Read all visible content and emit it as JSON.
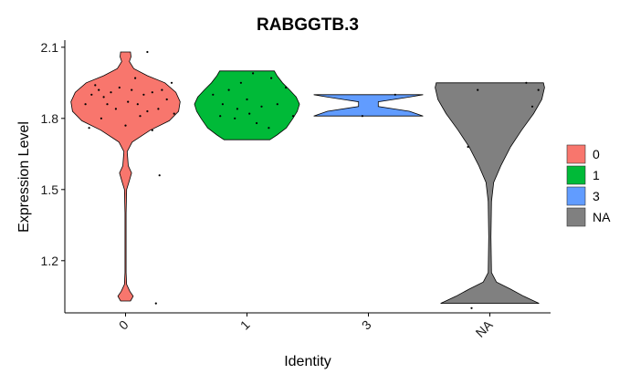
{
  "chart_data": {
    "type": "violin",
    "title": "RABGGTB.3",
    "xlabel": "Identity",
    "ylabel": "Expression Level",
    "categories": [
      "0",
      "1",
      "3",
      "NA"
    ],
    "y_ticks": [
      1.2,
      1.5,
      1.8,
      2.1
    ],
    "y_tick_labels": [
      "1.2",
      "1.5",
      "1.8",
      "2.1"
    ],
    "ylim": [
      0.98,
      2.13
    ],
    "grid": false,
    "legend": {
      "position": "right",
      "entries": [
        {
          "label": "0",
          "color": "#F8766D"
        },
        {
          "label": "1",
          "color": "#00BA38"
        },
        {
          "label": "3",
          "color": "#619CFF"
        },
        {
          "label": "NA",
          "color": "#808080"
        }
      ]
    },
    "series": [
      {
        "category": "0",
        "color": "#F8766D",
        "violin": [
          [
            1.03,
            0.09
          ],
          [
            1.05,
            0.14
          ],
          [
            1.07,
            0.08
          ],
          [
            1.1,
            0.02
          ],
          [
            1.15,
            0.01
          ],
          [
            1.3,
            0.01
          ],
          [
            1.4,
            0.01
          ],
          [
            1.5,
            0.02
          ],
          [
            1.53,
            0.06
          ],
          [
            1.57,
            0.11
          ],
          [
            1.6,
            0.05
          ],
          [
            1.66,
            0.03
          ],
          [
            1.7,
            0.12
          ],
          [
            1.75,
            0.45
          ],
          [
            1.79,
            0.8
          ],
          [
            1.83,
            0.97
          ],
          [
            1.87,
            1.0
          ],
          [
            1.91,
            0.92
          ],
          [
            1.95,
            0.72
          ],
          [
            1.98,
            0.4
          ],
          [
            2.01,
            0.15
          ],
          [
            2.04,
            0.07
          ],
          [
            2.06,
            0.1
          ],
          [
            2.08,
            0.09
          ]
        ],
        "points": [
          [
            -0.25,
            1.94
          ],
          [
            -0.22,
            1.92
          ],
          [
            -0.28,
            1.9
          ],
          [
            -0.18,
            1.89
          ],
          [
            -0.12,
            1.91
          ],
          [
            -0.05,
            1.93
          ],
          [
            0.05,
            1.92
          ],
          [
            0.15,
            1.9
          ],
          [
            0.22,
            1.91
          ],
          [
            0.3,
            1.92
          ],
          [
            0.38,
            1.95
          ],
          [
            -0.15,
            1.86
          ],
          [
            -0.08,
            1.84
          ],
          [
            0.02,
            1.87
          ],
          [
            0.1,
            1.86
          ],
          [
            0.18,
            1.83
          ],
          [
            0.27,
            1.84
          ],
          [
            0.34,
            1.88
          ],
          [
            0.4,
            1.82
          ],
          [
            -0.2,
            1.8
          ],
          [
            0.12,
            1.81
          ],
          [
            -0.33,
            1.86
          ],
          [
            -0.3,
            1.76
          ],
          [
            0.0,
            1.77
          ],
          [
            0.22,
            1.75
          ],
          [
            0.08,
            1.97
          ],
          [
            0.18,
            2.08
          ],
          [
            0.28,
            1.56
          ],
          [
            0.25,
            1.02
          ]
        ]
      },
      {
        "category": "1",
        "color": "#00BA38",
        "violin": [
          [
            1.71,
            0.42
          ],
          [
            1.73,
            0.55
          ],
          [
            1.76,
            0.72
          ],
          [
            1.8,
            0.84
          ],
          [
            1.83,
            0.92
          ],
          [
            1.86,
            0.96
          ],
          [
            1.89,
            0.9
          ],
          [
            1.92,
            0.78
          ],
          [
            1.95,
            0.65
          ],
          [
            1.98,
            0.55
          ],
          [
            2.0,
            0.5
          ]
        ],
        "points": [
          [
            -0.28,
            1.9
          ],
          [
            -0.15,
            1.92
          ],
          [
            -0.05,
            1.95
          ],
          [
            0.05,
            1.99
          ],
          [
            0.2,
            1.97
          ],
          [
            0.32,
            1.93
          ],
          [
            -0.2,
            1.86
          ],
          [
            -0.08,
            1.84
          ],
          [
            0.0,
            1.88
          ],
          [
            0.12,
            1.85
          ],
          [
            0.25,
            1.86
          ],
          [
            0.38,
            1.81
          ],
          [
            -0.22,
            1.81
          ],
          [
            -0.1,
            1.8
          ],
          [
            0.08,
            1.78
          ],
          [
            0.18,
            1.76
          ],
          [
            0.02,
            1.82
          ]
        ]
      },
      {
        "category": "3",
        "color": "#619CFF",
        "violin": [
          [
            1.81,
            1.0
          ],
          [
            1.83,
            0.75
          ],
          [
            1.85,
            0.18
          ],
          [
            1.87,
            0.18
          ],
          [
            1.89,
            0.75
          ],
          [
            1.9,
            1.0
          ]
        ],
        "points": [
          [
            -0.05,
            1.81
          ],
          [
            0.22,
            1.9
          ]
        ]
      },
      {
        "category": "NA",
        "color": "#808080",
        "violin": [
          [
            1.02,
            0.9
          ],
          [
            1.05,
            0.62
          ],
          [
            1.08,
            0.38
          ],
          [
            1.11,
            0.12
          ],
          [
            1.15,
            0.03
          ],
          [
            1.3,
            0.02
          ],
          [
            1.45,
            0.03
          ],
          [
            1.53,
            0.07
          ],
          [
            1.6,
            0.2
          ],
          [
            1.68,
            0.38
          ],
          [
            1.75,
            0.58
          ],
          [
            1.82,
            0.8
          ],
          [
            1.88,
            0.95
          ],
          [
            1.93,
            1.0
          ],
          [
            1.95,
            0.98
          ]
        ],
        "points": [
          [
            -0.1,
            1.92
          ],
          [
            0.3,
            1.95
          ],
          [
            0.4,
            1.92
          ],
          [
            0.35,
            1.85
          ],
          [
            -0.18,
            1.68
          ],
          [
            -0.15,
            1.0
          ]
        ]
      }
    ]
  }
}
